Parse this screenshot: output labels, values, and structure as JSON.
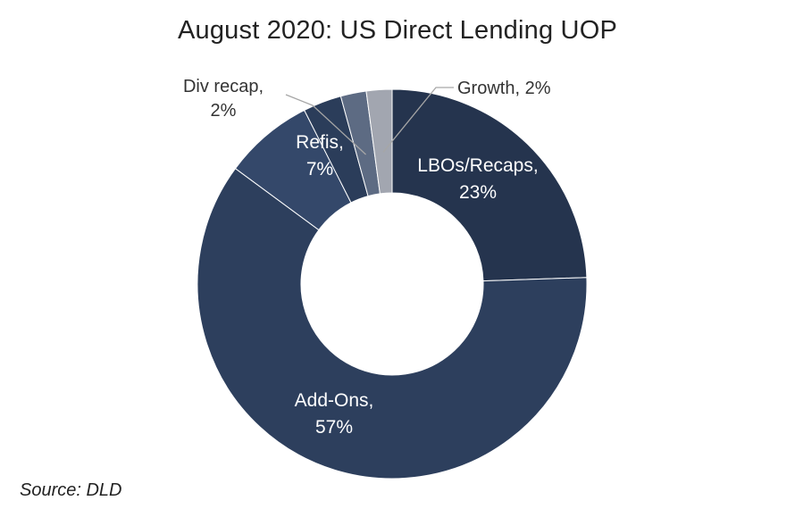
{
  "chart_data": {
    "type": "pie",
    "variant": "donut",
    "title": "August 2020: US Direct Lending UOP",
    "source": "Source: DLD",
    "slices": [
      {
        "label": "LBOs/Recaps",
        "value": 23,
        "value_label": "23%",
        "color": "#25344e",
        "label_position": "inside"
      },
      {
        "label": "Add-Ons",
        "value": 57,
        "value_label": "57%",
        "color": "#2d3f5d",
        "label_position": "inside"
      },
      {
        "label": "Refis",
        "value": 7,
        "value_label": "7%",
        "color": "#34486a",
        "label_position": "inside"
      },
      {
        "label": "",
        "value": 3,
        "value_label": "",
        "color": "#2b3d5a",
        "label_position": "none"
      },
      {
        "label": "Div recap",
        "value": 2,
        "value_label": "2%",
        "color": "#5d6b83",
        "label_position": "outside"
      },
      {
        "label": "Growth",
        "value": 2,
        "value_label": "2%",
        "color": "#a2a6b0",
        "label_position": "outside"
      }
    ],
    "legend": "none",
    "start_direction": "top",
    "clockwise": true
  }
}
